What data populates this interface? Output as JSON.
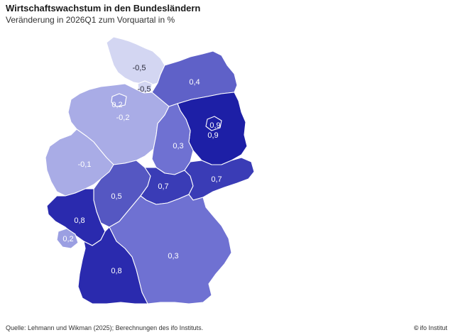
{
  "title": "Wirtschaftswachstum in den Bundesländern",
  "subtitle": "Veränderung in 2026Q1 zum Vorquartal in %",
  "colors": {
    "v_neg05": "#d3d6f2",
    "v_neg02": "#a9ace6",
    "v_02": "#9b9fe2",
    "v_03": "#6f71d2",
    "v_04": "#5f61c8",
    "v_05": "#5557c2",
    "v_07": "#3a3cb6",
    "v_08": "#2a2aae",
    "v_09": "#1d1fa6"
  },
  "states": [
    {
      "name": "Schleswig-Holstein",
      "value": "-0,5"
    },
    {
      "name": "Hamburg",
      "value": "-0,5"
    },
    {
      "name": "Mecklenburg-Vorpommern",
      "value": "0,4"
    },
    {
      "name": "Bremen",
      "value": "0,2"
    },
    {
      "name": "Niedersachsen",
      "value": "-0,2"
    },
    {
      "name": "Berlin",
      "value": "0,9"
    },
    {
      "name": "Brandenburg",
      "value": "0,9"
    },
    {
      "name": "Sachsen-Anhalt",
      "value": "0,3"
    },
    {
      "name": "Nordrhein-Westfalen",
      "value": "-0,1"
    },
    {
      "name": "Sachsen",
      "value": "0,7"
    },
    {
      "name": "Thüringen",
      "value": "0,7"
    },
    {
      "name": "Hessen",
      "value": "0,5"
    },
    {
      "name": "Rheinland-Pfalz",
      "value": "0,8"
    },
    {
      "name": "Saarland",
      "value": "0,2"
    },
    {
      "name": "Bayern",
      "value": "0,3"
    },
    {
      "name": "Baden-Württemberg",
      "value": "0,8"
    }
  ],
  "footer": {
    "source": "Quelle: Lehmann und Wikman (2025); Berechnungen des ifo Instituts.",
    "brand_symbol": "©",
    "brand": "ifo Institut"
  }
}
